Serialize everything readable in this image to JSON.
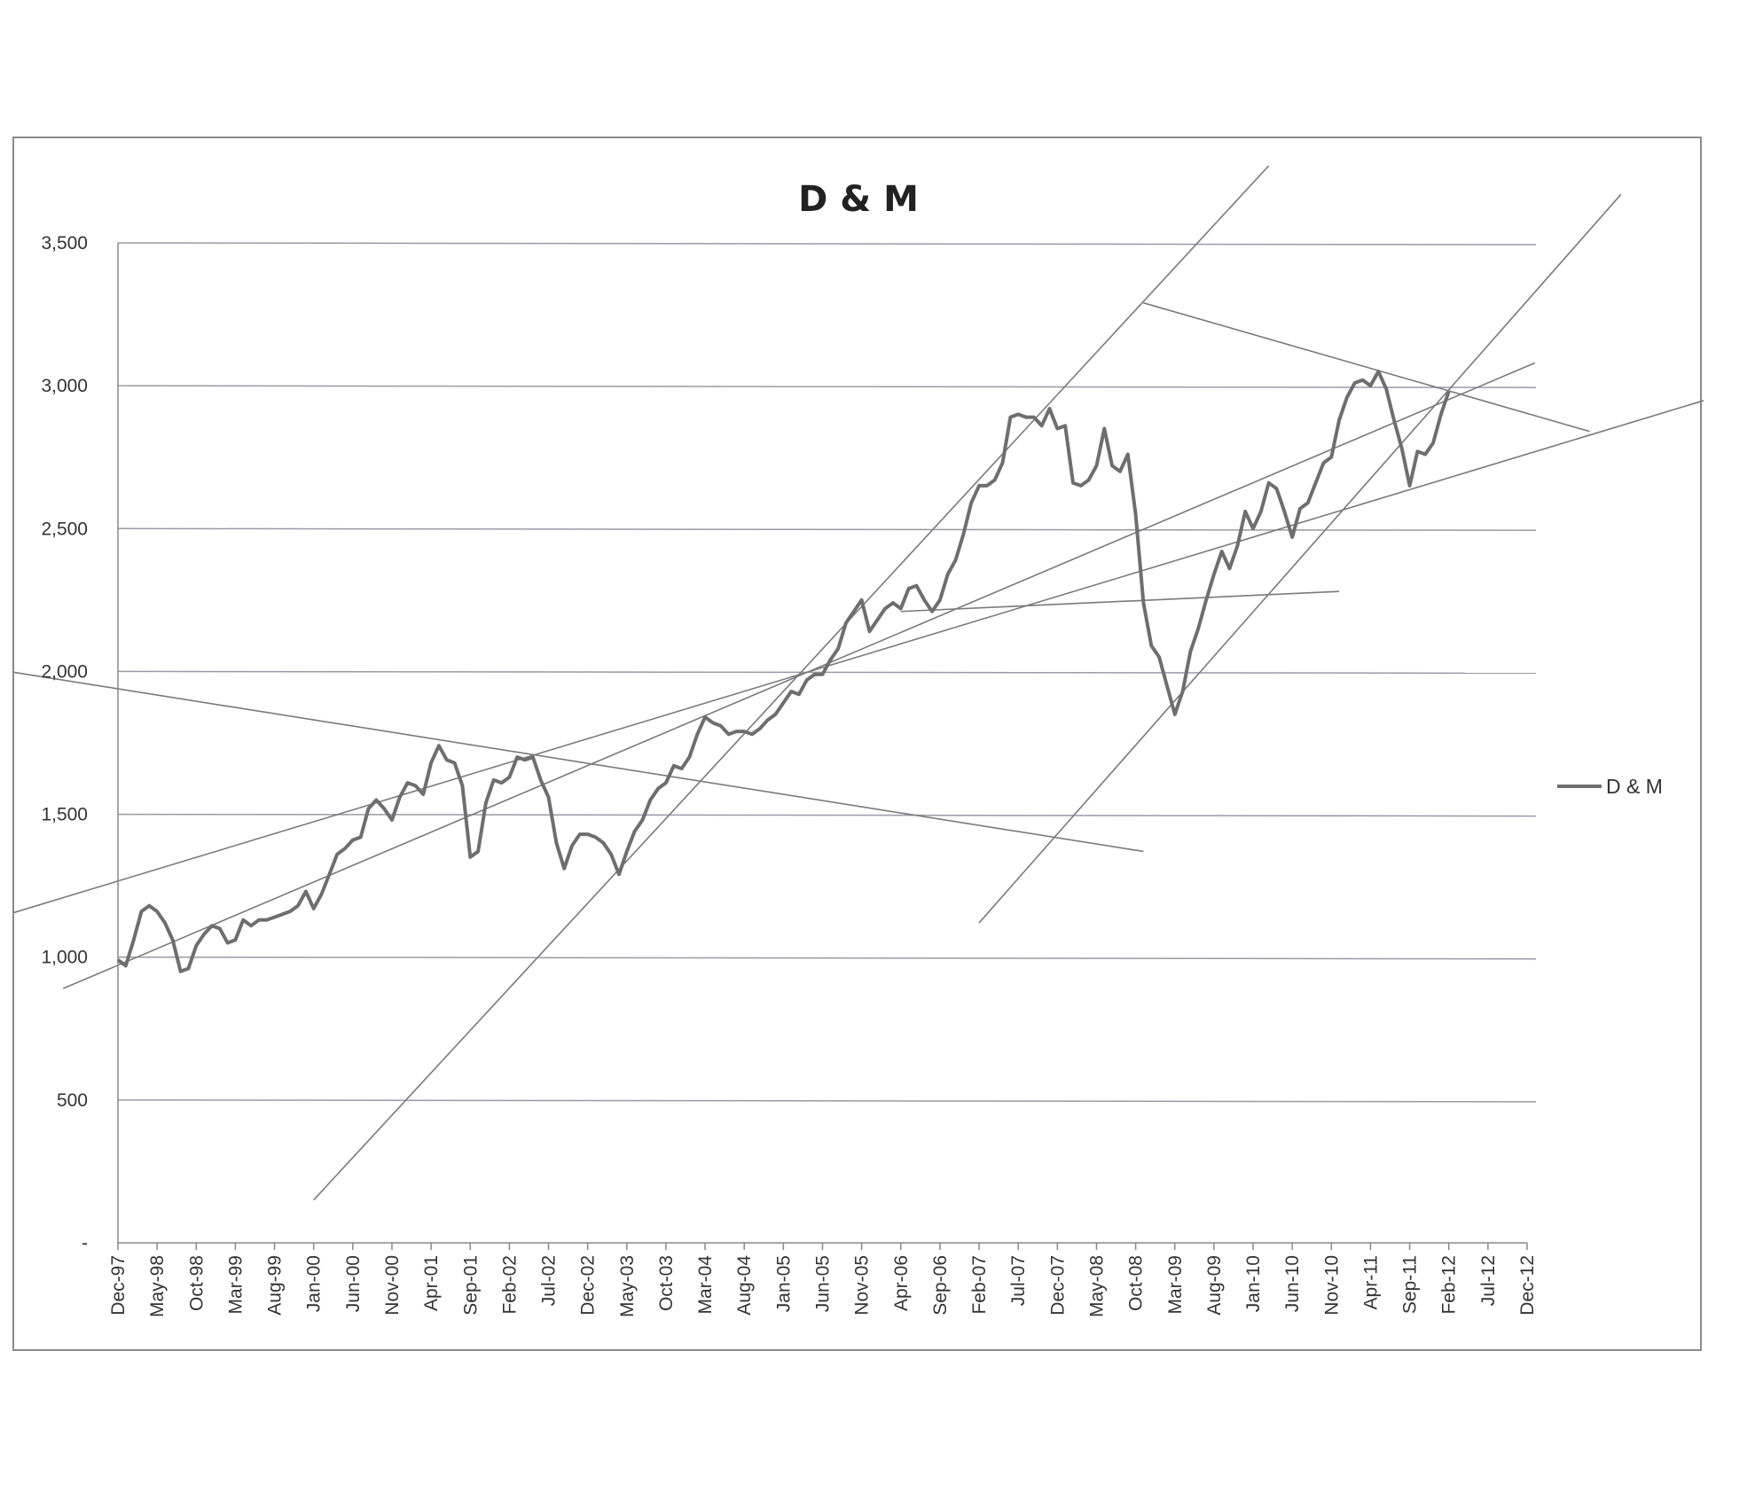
{
  "chart_data": {
    "type": "line",
    "title": "D & M",
    "xlabel": "",
    "ylabel": "",
    "ylim": [
      0,
      3500
    ],
    "y_ticks": [
      {
        "value": 0,
        "label": "-"
      },
      {
        "value": 500,
        "label": "500"
      },
      {
        "value": 1000,
        "label": "1,000"
      },
      {
        "value": 1500,
        "label": "1,500"
      },
      {
        "value": 2000,
        "label": "2,000"
      },
      {
        "value": 2500,
        "label": "2,500"
      },
      {
        "value": 3000,
        "label": "3,000"
      },
      {
        "value": 3500,
        "label": "3,500"
      }
    ],
    "x_tick_labels": [
      "Dec-97",
      "May-98",
      "Oct-98",
      "Mar-99",
      "Aug-99",
      "Jan-00",
      "Jun-00",
      "Nov-00",
      "Apr-01",
      "Sep-01",
      "Feb-02",
      "Jul-02",
      "Dec-02",
      "May-03",
      "Oct-03",
      "Mar-04",
      "Aug-04",
      "Jan-05",
      "Jun-05",
      "Nov-05",
      "Apr-06",
      "Sep-06",
      "Feb-07",
      "Jul-07",
      "Dec-07",
      "May-08",
      "Oct-08",
      "Mar-09",
      "Aug-09",
      "Jan-10",
      "Jun-10",
      "Nov-10",
      "Apr-11",
      "Sep-11",
      "Feb-12",
      "Jul-12",
      "Dec-12"
    ],
    "x_tick_months": [
      0,
      5,
      10,
      15,
      20,
      25,
      30,
      35,
      40,
      45,
      50,
      55,
      60,
      65,
      70,
      75,
      80,
      85,
      90,
      95,
      100,
      105,
      110,
      115,
      120,
      125,
      130,
      135,
      140,
      145,
      150,
      155,
      160,
      165,
      170,
      175,
      180
    ],
    "grid": "horizontal",
    "legend": {
      "position": "right",
      "entries": [
        "D & M"
      ]
    },
    "colors": {
      "series": "#6e6e6e",
      "grid": "#9a9aa6",
      "trend": "#7a7a7a",
      "axis": "#888888"
    },
    "series": [
      {
        "name": "D & M",
        "points": [
          [
            0,
            990
          ],
          [
            1,
            970
          ],
          [
            2,
            1060
          ],
          [
            3,
            1160
          ],
          [
            4,
            1180
          ],
          [
            5,
            1160
          ],
          [
            6,
            1120
          ],
          [
            7,
            1060
          ],
          [
            8,
            950
          ],
          [
            9,
            960
          ],
          [
            10,
            1040
          ],
          [
            11,
            1080
          ],
          [
            12,
            1110
          ],
          [
            13,
            1100
          ],
          [
            14,
            1050
          ],
          [
            15,
            1060
          ],
          [
            16,
            1130
          ],
          [
            17,
            1110
          ],
          [
            18,
            1130
          ],
          [
            19,
            1130
          ],
          [
            20,
            1140
          ],
          [
            21,
            1150
          ],
          [
            22,
            1160
          ],
          [
            23,
            1180
          ],
          [
            24,
            1230
          ],
          [
            25,
            1170
          ],
          [
            26,
            1220
          ],
          [
            27,
            1290
          ],
          [
            28,
            1360
          ],
          [
            29,
            1380
          ],
          [
            30,
            1410
          ],
          [
            31,
            1420
          ],
          [
            32,
            1520
          ],
          [
            33,
            1550
          ],
          [
            34,
            1520
          ],
          [
            35,
            1480
          ],
          [
            36,
            1560
          ],
          [
            37,
            1610
          ],
          [
            38,
            1600
          ],
          [
            39,
            1570
          ],
          [
            40,
            1680
          ],
          [
            41,
            1740
          ],
          [
            42,
            1690
          ],
          [
            43,
            1680
          ],
          [
            44,
            1600
          ],
          [
            45,
            1350
          ],
          [
            46,
            1370
          ],
          [
            47,
            1540
          ],
          [
            48,
            1620
          ],
          [
            49,
            1610
          ],
          [
            50,
            1630
          ],
          [
            51,
            1700
          ],
          [
            52,
            1690
          ],
          [
            53,
            1700
          ],
          [
            54,
            1620
          ],
          [
            55,
            1560
          ],
          [
            56,
            1400
          ],
          [
            57,
            1310
          ],
          [
            58,
            1390
          ],
          [
            59,
            1430
          ],
          [
            60,
            1430
          ],
          [
            61,
            1420
          ],
          [
            62,
            1400
          ],
          [
            63,
            1360
          ],
          [
            64,
            1290
          ],
          [
            65,
            1370
          ],
          [
            66,
            1440
          ],
          [
            67,
            1480
          ],
          [
            68,
            1550
          ],
          [
            69,
            1590
          ],
          [
            70,
            1610
          ],
          [
            71,
            1670
          ],
          [
            72,
            1660
          ],
          [
            73,
            1700
          ],
          [
            74,
            1780
          ],
          [
            75,
            1840
          ],
          [
            76,
            1820
          ],
          [
            77,
            1810
          ],
          [
            78,
            1780
          ],
          [
            79,
            1790
          ],
          [
            80,
            1790
          ],
          [
            81,
            1780
          ],
          [
            82,
            1800
          ],
          [
            83,
            1830
          ],
          [
            84,
            1850
          ],
          [
            85,
            1890
          ],
          [
            86,
            1930
          ],
          [
            87,
            1920
          ],
          [
            88,
            1970
          ],
          [
            89,
            1990
          ],
          [
            90,
            1990
          ],
          [
            91,
            2040
          ],
          [
            92,
            2080
          ],
          [
            93,
            2170
          ],
          [
            94,
            2210
          ],
          [
            95,
            2250
          ],
          [
            96,
            2140
          ],
          [
            97,
            2180
          ],
          [
            98,
            2220
          ],
          [
            99,
            2240
          ],
          [
            100,
            2220
          ],
          [
            101,
            2290
          ],
          [
            102,
            2300
          ],
          [
            103,
            2250
          ],
          [
            104,
            2210
          ],
          [
            105,
            2250
          ],
          [
            106,
            2340
          ],
          [
            107,
            2390
          ],
          [
            108,
            2480
          ],
          [
            109,
            2590
          ],
          [
            110,
            2650
          ],
          [
            111,
            2650
          ],
          [
            112,
            2670
          ],
          [
            113,
            2730
          ],
          [
            114,
            2890
          ],
          [
            115,
            2900
          ],
          [
            116,
            2890
          ],
          [
            117,
            2890
          ],
          [
            118,
            2860
          ],
          [
            119,
            2920
          ],
          [
            120,
            2850
          ],
          [
            121,
            2860
          ],
          [
            122,
            2660
          ],
          [
            123,
            2650
          ],
          [
            124,
            2670
          ],
          [
            125,
            2720
          ],
          [
            126,
            2850
          ],
          [
            127,
            2720
          ],
          [
            128,
            2700
          ],
          [
            129,
            2760
          ],
          [
            130,
            2550
          ],
          [
            131,
            2240
          ],
          [
            132,
            2090
          ],
          [
            133,
            2050
          ],
          [
            134,
            1950
          ],
          [
            135,
            1850
          ],
          [
            136,
            1930
          ],
          [
            137,
            2070
          ],
          [
            138,
            2150
          ],
          [
            139,
            2250
          ],
          [
            140,
            2340
          ],
          [
            141,
            2420
          ],
          [
            142,
            2360
          ],
          [
            143,
            2440
          ],
          [
            144,
            2560
          ],
          [
            145,
            2500
          ],
          [
            146,
            2560
          ],
          [
            147,
            2660
          ],
          [
            148,
            2640
          ],
          [
            149,
            2560
          ],
          [
            150,
            2470
          ],
          [
            151,
            2570
          ],
          [
            152,
            2590
          ],
          [
            153,
            2660
          ],
          [
            154,
            2730
          ],
          [
            155,
            2750
          ],
          [
            156,
            2880
          ],
          [
            157,
            2960
          ],
          [
            158,
            3010
          ],
          [
            159,
            3020
          ],
          [
            160,
            3000
          ],
          [
            161,
            3050
          ],
          [
            162,
            2990
          ],
          [
            163,
            2880
          ],
          [
            164,
            2780
          ],
          [
            165,
            2650
          ],
          [
            166,
            2770
          ],
          [
            167,
            2760
          ],
          [
            168,
            2800
          ],
          [
            169,
            2900
          ],
          [
            170,
            2980
          ]
        ]
      }
    ],
    "trend_lines": [
      {
        "from": [
          -14,
          1150
        ],
        "to": [
          210,
          3010
        ]
      },
      {
        "from": [
          -7,
          890
        ],
        "to": [
          181,
          3080
        ]
      },
      {
        "from": [
          -14,
          2000
        ],
        "to": [
          131,
          1370
        ]
      },
      {
        "from": [
          25,
          150
        ],
        "to": [
          147,
          3770
        ]
      },
      {
        "from": [
          110,
          1120
        ],
        "to": [
          192,
          3670
        ]
      },
      {
        "from": [
          100,
          2210
        ],
        "to": [
          156,
          2280
        ]
      },
      {
        "from": [
          131,
          3290
        ],
        "to": [
          188,
          2840
        ]
      }
    ]
  }
}
